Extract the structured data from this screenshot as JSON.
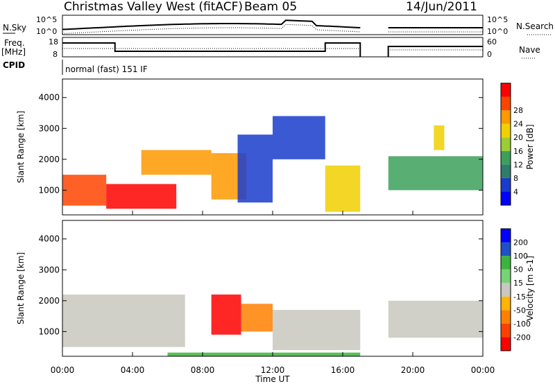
{
  "header": {
    "station": "Christmas Valley West (fitACF)",
    "beam": "Beam 05",
    "date": "14/Jun/2011"
  },
  "strip_labels": {
    "nsky": "N.Sky",
    "freq_line1": "Freq.",
    "freq_line2": "[MHz]",
    "cpid": "CPID",
    "nsearch": "N.Search",
    "nave": "Nave",
    "nsky_top": "10^5",
    "nsky_bottom": "10^0",
    "nsearch_top": "10^5",
    "nsearch_bottom": "10^0",
    "freq_top": "18",
    "freq_bottom": "8",
    "nave_top": "60",
    "nave_bottom": "0",
    "cpid_text": "normal (fast) 151 IF"
  },
  "colors": {
    "power": [
      "#0000ff",
      "#1a3ccc",
      "#2e7d6a",
      "#3ca05a",
      "#9acd32",
      "#f0d000",
      "#ff9900",
      "#ff4400",
      "#ff0000"
    ],
    "velocity": [
      "#0000ff",
      "#2050c8",
      "#3cb43c",
      "#78d278",
      "#c8c8c0",
      "#ffb400",
      "#ff8000",
      "#ff4000",
      "#ff0000"
    ],
    "ground_scatter": "#c0c0b8"
  },
  "chart_data": [
    {
      "type": "heatmap",
      "panel": "power",
      "xlabel": "",
      "ylabel": "Slant Range [km]",
      "ylim": [
        200,
        4600
      ],
      "yticks": [
        "1000",
        "2000",
        "3000",
        "4000"
      ],
      "colorbar_label": "Power [dB]",
      "colorbar_ticks": [
        "4",
        "8",
        "12",
        "16",
        "20",
        "24",
        "28"
      ],
      "colorbar_range": [
        0,
        32
      ],
      "data_gap_hours": [
        17.2,
        18.6
      ],
      "regions": [
        {
          "t0": 0.0,
          "t1": 2.5,
          "r0": 500,
          "r1": 1500,
          "value": 26
        },
        {
          "t0": 2.5,
          "t1": 6.5,
          "r0": 400,
          "r1": 1200,
          "value": 30
        },
        {
          "t0": 4.5,
          "t1": 8.5,
          "r0": 1500,
          "r1": 2300,
          "value": 22
        },
        {
          "t0": 8.5,
          "t1": 10.5,
          "r0": 700,
          "r1": 2200,
          "value": 22
        },
        {
          "t0": 10.0,
          "t1": 12.0,
          "r0": 600,
          "r1": 2800,
          "value": 6
        },
        {
          "t0": 12.0,
          "t1": 15.0,
          "r0": 2000,
          "r1": 3400,
          "value": 7
        },
        {
          "t0": 15.0,
          "t1": 17.0,
          "r0": 300,
          "r1": 1800,
          "value": 20
        },
        {
          "t0": 18.6,
          "t1": 24.0,
          "r0": 1000,
          "r1": 2100,
          "value": 12
        },
        {
          "t0": 21.2,
          "t1": 21.8,
          "r0": 2300,
          "r1": 3100,
          "value": 18
        }
      ]
    },
    {
      "type": "heatmap",
      "panel": "velocity",
      "xlabel": "Time UT",
      "ylabel": "Slant Range [km]",
      "ylim": [
        200,
        4600
      ],
      "yticks": [
        "1000",
        "2000",
        "3000",
        "4000"
      ],
      "xticks": [
        "00:00",
        "04:00",
        "08:00",
        "12:00",
        "16:00",
        "20:00",
        "00:00"
      ],
      "xlim_hours": [
        0,
        24
      ],
      "colorbar_label": "Velocity [m s-1]",
      "colorbar_ticks": [
        "200",
        "100",
        "50",
        "15",
        "-15",
        "-50",
        "-100",
        "-200"
      ],
      "data_gap_hours": [
        17.2,
        18.6
      ],
      "regions": [
        {
          "t0": 0.0,
          "t1": 7.0,
          "r0": 500,
          "r1": 2200,
          "value": 0
        },
        {
          "t0": 8.5,
          "t1": 10.2,
          "r0": 900,
          "r1": 2200,
          "value": -200
        },
        {
          "t0": 10.2,
          "t1": 12.0,
          "r0": 1000,
          "r1": 1900,
          "value": -70
        },
        {
          "t0": 12.0,
          "t1": 17.0,
          "r0": 400,
          "r1": 1700,
          "value": 0
        },
        {
          "t0": 18.6,
          "t1": 24.0,
          "r0": 800,
          "r1": 2000,
          "value": 0
        },
        {
          "t0": 6.0,
          "t1": 17.0,
          "r0": 200,
          "r1": 320,
          "value": 40
        }
      ]
    }
  ]
}
